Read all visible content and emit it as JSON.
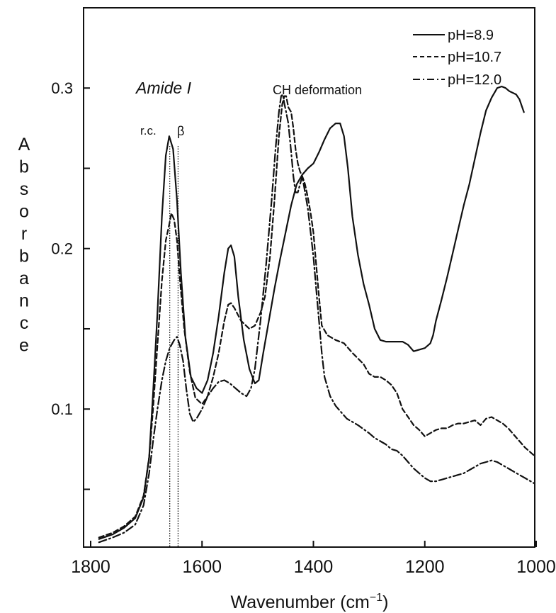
{
  "chart_data": {
    "type": "line",
    "title": "",
    "xlabel_text": "Wavenumber (cm",
    "xlabel_sup": "−1",
    "xlabel_close": ")",
    "ylabel": "Absorbance",
    "xlim": [
      1800,
      1000
    ],
    "ylim": [
      0.014,
      0.35
    ],
    "x_reversed": true,
    "grid": false,
    "x_ticks": [
      1800,
      1600,
      1400,
      1200,
      1000
    ],
    "y_ticks": [
      0.05,
      0.1,
      0.15,
      0.2,
      0.25,
      0.3
    ],
    "y_tick_labels": [
      {
        "value": 0.1,
        "label": "0.1"
      },
      {
        "value": 0.2,
        "label": "0.2"
      },
      {
        "value": 0.3,
        "label": "0.3"
      }
    ],
    "legend_position": "top-right",
    "annotations": [
      {
        "id": "amide",
        "text": "Amide I",
        "italic": true
      },
      {
        "id": "ch",
        "text": "CH deformation",
        "italic": false
      },
      {
        "id": "rc",
        "text": "r.c.",
        "italic": false
      },
      {
        "id": "beta",
        "text": "β",
        "italic": false
      }
    ],
    "reference_lines": [
      {
        "label": "r.c.",
        "x": 1658
      },
      {
        "label": "β",
        "x": 1643
      }
    ],
    "series": [
      {
        "name": "pH=8.9",
        "style": "solid",
        "color": "#111111",
        "x": [
          1785,
          1760,
          1740,
          1720,
          1705,
          1695,
          1688,
          1680,
          1672,
          1665,
          1659,
          1652,
          1645,
          1638,
          1630,
          1620,
          1610,
          1600,
          1590,
          1580,
          1570,
          1560,
          1553,
          1548,
          1542,
          1535,
          1525,
          1515,
          1505,
          1498,
          1490,
          1480,
          1470,
          1460,
          1450,
          1440,
          1430,
          1420,
          1410,
          1400,
          1390,
          1380,
          1370,
          1360,
          1352,
          1345,
          1338,
          1330,
          1320,
          1310,
          1300,
          1290,
          1280,
          1270,
          1260,
          1250,
          1240,
          1230,
          1220,
          1210,
          1200,
          1190,
          1185,
          1180,
          1170,
          1160,
          1150,
          1140,
          1130,
          1120,
          1110,
          1100,
          1090,
          1080,
          1070,
          1062,
          1055,
          1048,
          1042,
          1036,
          1030,
          1024,
          1022
        ],
        "y": [
          0.019,
          0.022,
          0.026,
          0.032,
          0.045,
          0.07,
          0.11,
          0.16,
          0.22,
          0.258,
          0.27,
          0.262,
          0.23,
          0.185,
          0.145,
          0.12,
          0.113,
          0.11,
          0.118,
          0.135,
          0.158,
          0.185,
          0.2,
          0.202,
          0.195,
          0.17,
          0.143,
          0.125,
          0.116,
          0.118,
          0.135,
          0.155,
          0.175,
          0.193,
          0.21,
          0.227,
          0.24,
          0.246,
          0.25,
          0.253,
          0.26,
          0.268,
          0.275,
          0.278,
          0.278,
          0.27,
          0.25,
          0.22,
          0.196,
          0.178,
          0.165,
          0.15,
          0.143,
          0.142,
          0.142,
          0.142,
          0.142,
          0.14,
          0.136,
          0.137,
          0.138,
          0.141,
          0.146,
          0.155,
          0.168,
          0.182,
          0.197,
          0.212,
          0.227,
          0.24,
          0.256,
          0.272,
          0.286,
          0.294,
          0.3,
          0.301,
          0.3,
          0.298,
          0.297,
          0.296,
          0.293,
          0.287,
          0.285
        ]
      },
      {
        "name": "pH=10.7",
        "style": "dashed",
        "color": "#111111",
        "x": [
          1785,
          1760,
          1740,
          1720,
          1705,
          1695,
          1688,
          1680,
          1672,
          1665,
          1659,
          1655,
          1650,
          1645,
          1640,
          1632,
          1622,
          1612,
          1600,
          1590,
          1580,
          1570,
          1560,
          1553,
          1548,
          1542,
          1530,
          1515,
          1505,
          1495,
          1487,
          1478,
          1470,
          1462,
          1456,
          1452,
          1449,
          1445,
          1440,
          1436,
          1432,
          1428,
          1424,
          1420,
          1415,
          1410,
          1405,
          1400,
          1395,
          1390,
          1385,
          1375,
          1360,
          1345,
          1330,
          1310,
          1300,
          1290,
          1280,
          1270,
          1260,
          1250,
          1240,
          1230,
          1220,
          1210,
          1200,
          1190,
          1180,
          1170,
          1160,
          1150,
          1140,
          1130,
          1120,
          1110,
          1100,
          1090,
          1080,
          1070,
          1060,
          1050,
          1040,
          1030,
          1020,
          1010,
          1000
        ],
        "y": [
          0.02,
          0.023,
          0.027,
          0.033,
          0.046,
          0.07,
          0.1,
          0.14,
          0.18,
          0.205,
          0.215,
          0.222,
          0.218,
          0.205,
          0.182,
          0.15,
          0.123,
          0.107,
          0.103,
          0.108,
          0.12,
          0.135,
          0.155,
          0.165,
          0.166,
          0.163,
          0.155,
          0.15,
          0.152,
          0.16,
          0.17,
          0.195,
          0.23,
          0.27,
          0.29,
          0.295,
          0.295,
          0.288,
          0.285,
          0.275,
          0.262,
          0.253,
          0.248,
          0.245,
          0.24,
          0.232,
          0.222,
          0.21,
          0.19,
          0.17,
          0.152,
          0.146,
          0.143,
          0.141,
          0.135,
          0.128,
          0.122,
          0.12,
          0.12,
          0.118,
          0.115,
          0.11,
          0.1,
          0.095,
          0.09,
          0.087,
          0.083,
          0.085,
          0.087,
          0.088,
          0.088,
          0.09,
          0.091,
          0.091,
          0.092,
          0.093,
          0.09,
          0.094,
          0.095,
          0.093,
          0.091,
          0.088,
          0.084,
          0.08,
          0.076,
          0.073,
          0.07
        ]
      },
      {
        "name": "pH=12.0",
        "style": "dashdot",
        "color": "#111111",
        "x": [
          1785,
          1760,
          1740,
          1720,
          1705,
          1695,
          1688,
          1680,
          1672,
          1665,
          1658,
          1650,
          1645,
          1640,
          1634,
          1628,
          1622,
          1616,
          1610,
          1600,
          1590,
          1580,
          1570,
          1560,
          1550,
          1540,
          1530,
          1520,
          1512,
          1505,
          1495,
          1485,
          1475,
          1468,
          1462,
          1458,
          1455,
          1452,
          1449,
          1445,
          1440,
          1436,
          1432,
          1428,
          1424,
          1420,
          1415,
          1410,
          1405,
          1400,
          1395,
          1390,
          1385,
          1380,
          1370,
          1360,
          1350,
          1340,
          1320,
          1300,
          1290,
          1280,
          1270,
          1260,
          1250,
          1240,
          1230,
          1220,
          1210,
          1200,
          1190,
          1180,
          1170,
          1160,
          1150,
          1140,
          1130,
          1120,
          1110,
          1100,
          1090,
          1080,
          1070,
          1060,
          1050,
          1040,
          1030,
          1020,
          1010,
          1000
        ],
        "y": [
          0.017,
          0.02,
          0.023,
          0.028,
          0.04,
          0.06,
          0.08,
          0.1,
          0.118,
          0.13,
          0.138,
          0.143,
          0.145,
          0.14,
          0.13,
          0.112,
          0.097,
          0.092,
          0.094,
          0.1,
          0.108,
          0.113,
          0.117,
          0.118,
          0.116,
          0.113,
          0.11,
          0.108,
          0.113,
          0.125,
          0.155,
          0.19,
          0.23,
          0.262,
          0.285,
          0.295,
          0.296,
          0.29,
          0.285,
          0.278,
          0.26,
          0.245,
          0.235,
          0.235,
          0.24,
          0.245,
          0.235,
          0.225,
          0.21,
          0.195,
          0.175,
          0.155,
          0.135,
          0.12,
          0.108,
          0.102,
          0.098,
          0.094,
          0.09,
          0.085,
          0.082,
          0.08,
          0.078,
          0.075,
          0.074,
          0.071,
          0.067,
          0.063,
          0.06,
          0.057,
          0.055,
          0.055,
          0.056,
          0.057,
          0.058,
          0.059,
          0.06,
          0.062,
          0.064,
          0.066,
          0.067,
          0.068,
          0.067,
          0.065,
          0.063,
          0.061,
          0.059,
          0.057,
          0.055,
          0.053
        ]
      }
    ]
  }
}
